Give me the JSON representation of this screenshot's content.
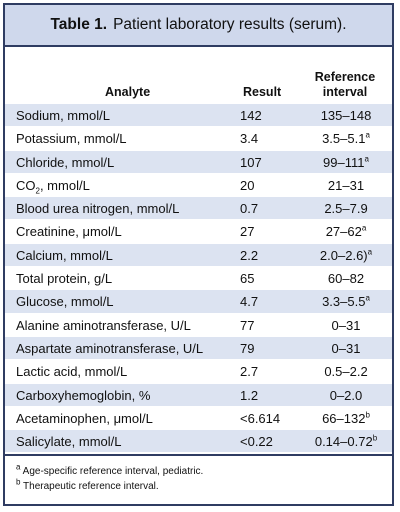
{
  "title": {
    "label": "Table 1.",
    "text": "Patient laboratory results (serum)."
  },
  "columns": {
    "analyte": "Analyte",
    "result": "Result",
    "reference_line1": "Reference",
    "reference_line2": "interval"
  },
  "rows": [
    {
      "analyte": "Sodium, mmol/L",
      "result": "142",
      "reference": "135–148",
      "ref_note": ""
    },
    {
      "analyte": "Potassium, mmol/L",
      "result": "3.4",
      "reference": "3.5–5.1",
      "ref_note": "a"
    },
    {
      "analyte": "Chloride, mmol/L",
      "result": "107",
      "reference": "99–111",
      "ref_note": "a"
    },
    {
      "analyte_pre": "CO",
      "analyte_sub": "2",
      "analyte_post": ", mmol/L",
      "result": "20",
      "reference": "21–31",
      "ref_note": ""
    },
    {
      "analyte": "Blood urea nitrogen, mmol/L",
      "result": "0.7",
      "reference": "2.5–7.9",
      "ref_note": ""
    },
    {
      "analyte": "Creatinine, μmol/L",
      "result": "27",
      "reference": "27–62",
      "ref_note": "a"
    },
    {
      "analyte": "Calcium, mmol/L",
      "result": "2.2",
      "reference": "2.0–2.6)",
      "ref_note": "a"
    },
    {
      "analyte": "Total protein, g/L",
      "result": "65",
      "reference": "60–82",
      "ref_note": ""
    },
    {
      "analyte": "Glucose, mmol/L",
      "result": "4.7",
      "reference": "3.3–5.5",
      "ref_note": "a"
    },
    {
      "analyte": "Alanine aminotransferase, U/L",
      "result": "77",
      "reference": "0–31",
      "ref_note": ""
    },
    {
      "analyte": "Aspartate aminotransferase, U/L",
      "result": "79",
      "reference": "0–31",
      "ref_note": ""
    },
    {
      "analyte": "Lactic acid, mmol/L",
      "result": "2.7",
      "reference": "0.5–2.2",
      "ref_note": ""
    },
    {
      "analyte": "Carboxyhemoglobin, %",
      "result": "1.2",
      "reference": "0–2.0",
      "ref_note": ""
    },
    {
      "analyte": "Acetaminophen, μmol/L",
      "result": "<6.614",
      "reference": "66–132",
      "ref_note": "b"
    },
    {
      "analyte": "Salicylate, mmol/L",
      "result": "<0.22",
      "reference": "0.14–0.72",
      "ref_note": "b"
    }
  ],
  "footnotes": [
    {
      "mark": "a",
      "text": " Age-specific reference interval, pediatric."
    },
    {
      "mark": "b",
      "text": " Therapeutic reference interval."
    }
  ],
  "colors": {
    "border": "#2f3c62",
    "title_fill": "#cfd8ec",
    "row_shade": "#dce3f1"
  }
}
